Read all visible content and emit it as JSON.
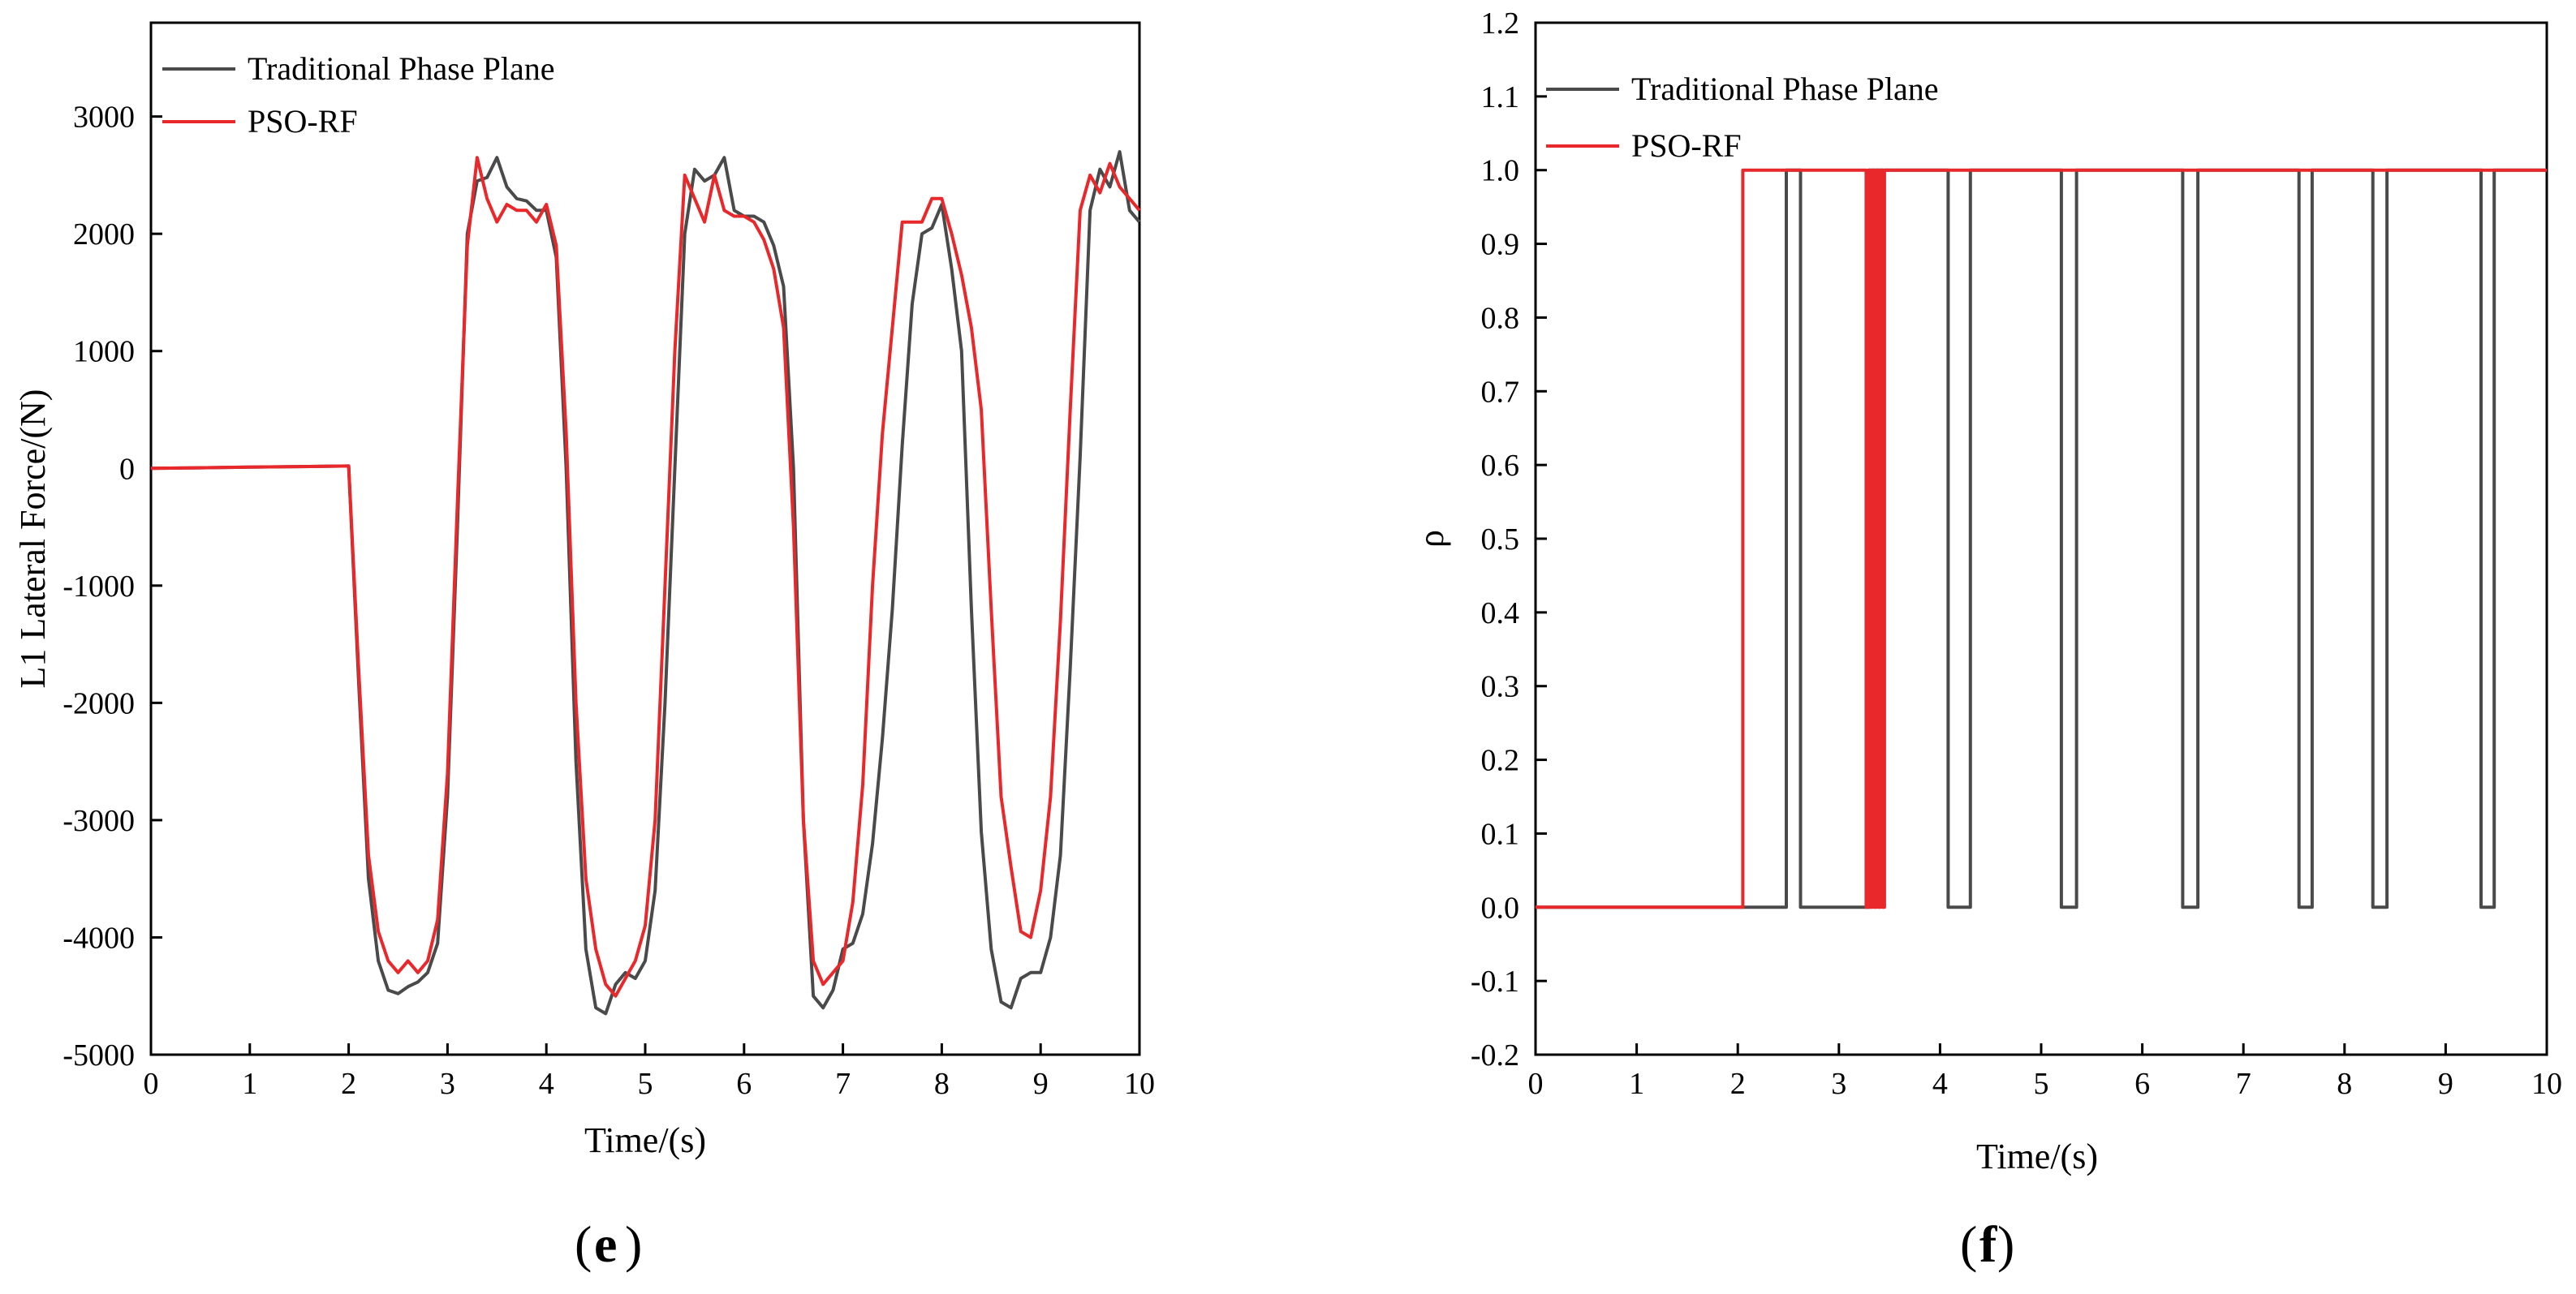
{
  "chart_data": [
    {
      "type": "line",
      "panel_label": {
        "open": "(",
        "letter": "e",
        "close": ")"
      },
      "xlabel": "Time/(s)",
      "ylabel": "L1 Lateral Force/(N)",
      "xlim": [
        0,
        10
      ],
      "ylim": [
        -5000,
        3800
      ],
      "xticks": [
        0,
        1,
        2,
        3,
        4,
        5,
        6,
        7,
        8,
        9,
        10
      ],
      "yticks": [
        -5000,
        -4000,
        -3000,
        -2000,
        -1000,
        0,
        1000,
        2000,
        3000
      ],
      "grid": false,
      "legend_position": "top-left",
      "series": [
        {
          "name": "Traditional Phase Plane",
          "color": "#4a4a4a",
          "x": [
            0,
            0.5,
            1,
            1.5,
            2,
            2.1,
            2.2,
            2.3,
            2.4,
            2.5,
            2.6,
            2.7,
            2.8,
            2.9,
            3.0,
            3.1,
            3.2,
            3.3,
            3.4,
            3.5,
            3.6,
            3.7,
            3.8,
            3.9,
            4.0,
            4.1,
            4.2,
            4.3,
            4.4,
            4.5,
            4.6,
            4.7,
            4.8,
            4.9,
            5.0,
            5.1,
            5.2,
            5.3,
            5.4,
            5.5,
            5.6,
            5.7,
            5.8,
            5.9,
            6.0,
            6.1,
            6.2,
            6.3,
            6.4,
            6.5,
            6.6,
            6.7,
            6.8,
            6.9,
            7.0,
            7.1,
            7.2,
            7.3,
            7.4,
            7.5,
            7.6,
            7.7,
            7.8,
            7.9,
            8.0,
            8.1,
            8.2,
            8.3,
            8.4,
            8.5,
            8.6,
            8.7,
            8.8,
            8.9,
            9.0,
            9.1,
            9.2,
            9.3,
            9.4,
            9.5,
            9.6,
            9.7,
            9.8,
            9.9,
            10.0
          ],
          "values": [
            0,
            5,
            10,
            15,
            20,
            -1800,
            -3500,
            -4200,
            -4450,
            -4480,
            -4420,
            -4380,
            -4300,
            -4050,
            -2800,
            -500,
            2000,
            2450,
            2480,
            2650,
            2400,
            2300,
            2280,
            2200,
            2200,
            1800,
            0,
            -2500,
            -4100,
            -4600,
            -4650,
            -4400,
            -4300,
            -4350,
            -4200,
            -3600,
            -2000,
            0,
            2000,
            2550,
            2450,
            2500,
            2650,
            2200,
            2150,
            2150,
            2100,
            1900,
            1550,
            0,
            -3000,
            -4500,
            -4600,
            -4450,
            -4100,
            -4050,
            -3800,
            -3200,
            -2300,
            -1200,
            200,
            1400,
            2000,
            2050,
            2250,
            1700,
            1000,
            -1200,
            -3100,
            -4100,
            -4550,
            -4600,
            -4350,
            -4300,
            -4300,
            -4000,
            -3300,
            -1700,
            100,
            2200,
            2550,
            2400,
            2700,
            2200,
            2100
          ]
        },
        {
          "name": "PSO-RF",
          "color": "#e8282b",
          "x": [
            0,
            0.5,
            1,
            1.5,
            2,
            2.1,
            2.2,
            2.3,
            2.4,
            2.5,
            2.6,
            2.7,
            2.8,
            2.9,
            3.0,
            3.1,
            3.2,
            3.3,
            3.4,
            3.5,
            3.6,
            3.7,
            3.8,
            3.9,
            4.0,
            4.1,
            4.2,
            4.3,
            4.4,
            4.5,
            4.6,
            4.7,
            4.8,
            4.9,
            5.0,
            5.1,
            5.2,
            5.3,
            5.4,
            5.5,
            5.6,
            5.7,
            5.8,
            5.9,
            6.0,
            6.1,
            6.2,
            6.3,
            6.4,
            6.5,
            6.6,
            6.7,
            6.8,
            6.9,
            7.0,
            7.1,
            7.2,
            7.3,
            7.4,
            7.5,
            7.6,
            7.7,
            7.8,
            7.9,
            8.0,
            8.1,
            8.2,
            8.3,
            8.4,
            8.5,
            8.6,
            8.7,
            8.8,
            8.9,
            9.0,
            9.1,
            9.2,
            9.3,
            9.4,
            9.5,
            9.6,
            9.7,
            9.8,
            9.9,
            10.0
          ],
          "values": [
            0,
            5,
            10,
            15,
            20,
            -1700,
            -3300,
            -3950,
            -4200,
            -4300,
            -4200,
            -4300,
            -4200,
            -3850,
            -2600,
            -300,
            1900,
            2650,
            2300,
            2100,
            2250,
            2200,
            2200,
            2100,
            2250,
            1900,
            300,
            -2000,
            -3500,
            -4100,
            -4400,
            -4500,
            -4350,
            -4200,
            -3900,
            -3000,
            -1000,
            1000,
            2500,
            2300,
            2100,
            2500,
            2200,
            2150,
            2150,
            2100,
            1950,
            1700,
            1200,
            -500,
            -3000,
            -4200,
            -4400,
            -4300,
            -4200,
            -3700,
            -2700,
            -1000,
            300,
            1200,
            2100,
            2100,
            2100,
            2300,
            2300,
            2000,
            1650,
            1200,
            500,
            -1200,
            -2800,
            -3400,
            -3950,
            -4000,
            -3600,
            -2800,
            -1300,
            500,
            2200,
            2500,
            2350,
            2600,
            2400,
            2300,
            2200
          ]
        }
      ]
    },
    {
      "type": "line",
      "panel_label": {
        "open": "(",
        "letter": "f",
        "close": ")"
      },
      "xlabel": "Time/(s)",
      "ylabel": "ρ",
      "xlim": [
        0,
        10
      ],
      "ylim": [
        -0.2,
        1.2
      ],
      "xticks": [
        0,
        1,
        2,
        3,
        4,
        5,
        6,
        7,
        8,
        9,
        10
      ],
      "yticks": [
        -0.2,
        -0.1,
        0.0,
        0.1,
        0.2,
        0.3,
        0.4,
        0.5,
        0.6,
        0.7,
        0.8,
        0.9,
        1.0,
        1.1,
        1.2
      ],
      "ytick_labels": [
        "-0.2",
        "-0.1",
        "0.0",
        "0.1",
        "0.2",
        "0.3",
        "0.4",
        "0.5",
        "0.6",
        "0.7",
        "0.8",
        "0.9",
        "1.0",
        "1.1",
        "1.2"
      ],
      "grid": false,
      "legend_position": "top-left",
      "series": [
        {
          "name": "Traditional Phase Plane",
          "color": "#4a4a4a",
          "x": [
            0,
            2.05,
            2.05,
            2.48,
            2.48,
            2.52,
            2.52,
            2.62,
            2.62,
            3.3,
            3.3,
            3.35,
            3.35,
            4.08,
            4.08,
            4.3,
            4.3,
            5.2,
            5.2,
            5.35,
            5.35,
            6.4,
            6.4,
            6.55,
            6.55,
            7.55,
            7.55,
            7.68,
            7.68,
            8.28,
            8.28,
            8.42,
            8.42,
            9.35,
            9.35,
            9.48,
            9.48,
            10
          ],
          "values": [
            0,
            0,
            0,
            0,
            1,
            1,
            1,
            1,
            0,
            0,
            1,
            1,
            1,
            1,
            0,
            0,
            1,
            1,
            0,
            0,
            1,
            1,
            0,
            0,
            1,
            1,
            0,
            0,
            1,
            1,
            0,
            0,
            1,
            1,
            0,
            0,
            1,
            1
          ]
        },
        {
          "name": "PSO-RF",
          "color": "#e8282b",
          "x": [
            0,
            2.05,
            2.05,
            3.27,
            3.27,
            3.29,
            3.29,
            3.31,
            3.31,
            3.33,
            3.33,
            3.35,
            3.35,
            3.37,
            3.37,
            3.39,
            3.39,
            3.41,
            3.41,
            3.43,
            3.43,
            3.45,
            3.45,
            3.47,
            3.47,
            10
          ],
          "values": [
            0,
            0,
            1,
            1,
            0,
            0,
            1,
            1,
            0,
            0,
            1,
            1,
            0,
            0,
            1,
            1,
            0,
            0,
            1,
            1,
            0,
            0,
            1,
            1,
            1,
            1
          ]
        }
      ]
    }
  ]
}
